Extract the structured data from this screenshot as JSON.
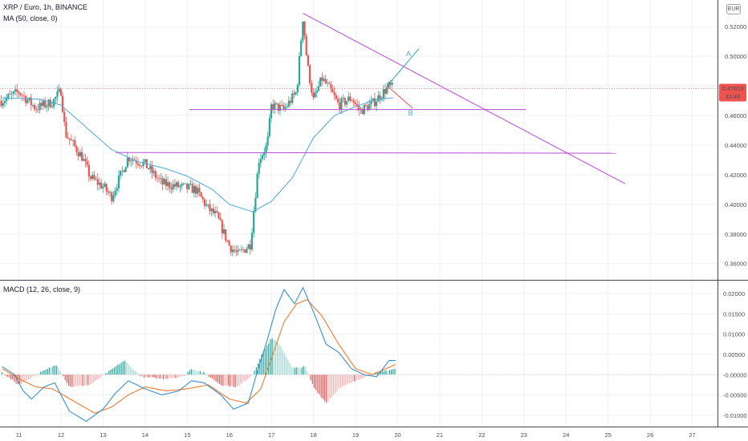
{
  "header": {
    "symbol_title": "XRP / Euro, 1h, BINANCE",
    "ma_legend": "MA (50, close, 0)",
    "macd_legend": "MACD (12, 26, close, 9)",
    "currency": "EUR"
  },
  "colors": {
    "up": "#26a69a",
    "down": "#ef5350",
    "ma_line": "#4ea8d8",
    "macd_line": "#3a8fd0",
    "signal_line": "#f07a2e",
    "trendline": "#b84ad8",
    "arrow_a": "#26a69a",
    "arrow_b": "#ef5350",
    "last_price_bg": "#ef5350"
  },
  "chart_data": [
    {
      "type": "candlestick",
      "panel": "price",
      "x_ticks": [
        "11",
        "12",
        "13",
        "14",
        "15",
        "16",
        "17",
        "18",
        "19",
        "20",
        "21",
        "22",
        "23",
        "24",
        "25",
        "26",
        "27"
      ],
      "y_ticks": [
        "0.52000",
        "0.50000",
        "0.48000",
        "0.46000",
        "0.44000",
        "0.42000",
        "0.40000",
        "0.38000",
        "0.36000"
      ],
      "ylim": [
        0.349,
        0.538
      ],
      "xlim": [
        10.55,
        27.6
      ],
      "last_price": "0.47819",
      "countdown": "33:46",
      "anchors": [
        {
          "day": 10.6,
          "price": 0.47
        },
        {
          "day": 11.0,
          "price": 0.476
        },
        {
          "day": 11.4,
          "price": 0.465
        },
        {
          "day": 11.8,
          "price": 0.469
        },
        {
          "day": 12.0,
          "price": 0.477
        },
        {
          "day": 12.1,
          "price": 0.448
        },
        {
          "day": 12.5,
          "price": 0.432
        },
        {
          "day": 12.7,
          "price": 0.418
        },
        {
          "day": 13.0,
          "price": 0.412
        },
        {
          "day": 13.2,
          "price": 0.405
        },
        {
          "day": 13.6,
          "price": 0.432
        },
        {
          "day": 14.0,
          "price": 0.427
        },
        {
          "day": 14.4,
          "price": 0.414
        },
        {
          "day": 14.8,
          "price": 0.412
        },
        {
          "day": 15.2,
          "price": 0.41
        },
        {
          "day": 15.5,
          "price": 0.397
        },
        {
          "day": 15.7,
          "price": 0.392
        },
        {
          "day": 16.0,
          "price": 0.372
        },
        {
          "day": 16.2,
          "price": 0.366
        },
        {
          "day": 16.5,
          "price": 0.373
        },
        {
          "day": 16.7,
          "price": 0.43
        },
        {
          "day": 16.9,
          "price": 0.44
        },
        {
          "day": 17.0,
          "price": 0.467
        },
        {
          "day": 17.3,
          "price": 0.464
        },
        {
          "day": 17.6,
          "price": 0.476
        },
        {
          "day": 17.75,
          "price": 0.527
        },
        {
          "day": 17.85,
          "price": 0.495
        },
        {
          "day": 18.0,
          "price": 0.47
        },
        {
          "day": 18.2,
          "price": 0.485
        },
        {
          "day": 18.4,
          "price": 0.477
        },
        {
          "day": 18.6,
          "price": 0.467
        },
        {
          "day": 18.9,
          "price": 0.472
        },
        {
          "day": 19.1,
          "price": 0.463
        },
        {
          "day": 19.4,
          "price": 0.468
        },
        {
          "day": 19.6,
          "price": 0.474
        },
        {
          "day": 19.8,
          "price": 0.48
        },
        {
          "day": 19.9,
          "price": 0.478
        }
      ],
      "ma50": [
        {
          "day": 10.6,
          "price": 0.472
        },
        {
          "day": 11.5,
          "price": 0.471
        },
        {
          "day": 12.0,
          "price": 0.467
        },
        {
          "day": 12.6,
          "price": 0.452
        },
        {
          "day": 13.2,
          "price": 0.437
        },
        {
          "day": 13.8,
          "price": 0.429
        },
        {
          "day": 14.5,
          "price": 0.424
        },
        {
          "day": 15.0,
          "price": 0.419
        },
        {
          "day": 15.6,
          "price": 0.41
        },
        {
          "day": 16.0,
          "price": 0.4
        },
        {
          "day": 16.55,
          "price": 0.395
        },
        {
          "day": 17.0,
          "price": 0.402
        },
        {
          "day": 17.5,
          "price": 0.418
        },
        {
          "day": 18.0,
          "price": 0.445
        },
        {
          "day": 18.5,
          "price": 0.46
        },
        {
          "day": 19.0,
          "price": 0.466
        },
        {
          "day": 19.5,
          "price": 0.471
        },
        {
          "day": 19.9,
          "price": 0.472
        }
      ],
      "drawings": {
        "descending_trendline": [
          {
            "day": 17.75,
            "price": 0.529
          },
          {
            "day": 25.4,
            "price": 0.414
          }
        ],
        "resistance_line": [
          {
            "day": 15.05,
            "price": 0.464
          },
          {
            "day": 23.05,
            "price": 0.464
          }
        ],
        "support_line": [
          {
            "day": 13.3,
            "price": 0.435
          },
          {
            "day": 25.2,
            "price": 0.4345
          }
        ],
        "arrow_a": [
          {
            "day": 19.75,
            "price": 0.48
          },
          {
            "day": 20.5,
            "price": 0.505
          }
        ],
        "arrow_b": [
          {
            "day": 19.75,
            "price": 0.48
          },
          {
            "day": 20.35,
            "price": 0.465
          }
        ],
        "label_a": {
          "text": "A",
          "day": 20.2,
          "price": 0.5
        },
        "label_b": {
          "text": "B",
          "day": 20.25,
          "price": 0.46
        }
      }
    },
    {
      "type": "macd",
      "panel": "indicator",
      "y_ticks": [
        "0.02000",
        "0.01500",
        "0.01000",
        "0.00500",
        "-0.00000",
        "-0.00500",
        "-0.01000"
      ],
      "ylim": [
        -0.0128,
        0.0232
      ],
      "macd": [
        {
          "day": 10.6,
          "value": 0.002
        },
        {
          "day": 10.9,
          "value": 0.0
        },
        {
          "day": 11.1,
          "value": -0.004
        },
        {
          "day": 11.3,
          "value": -0.006
        },
        {
          "day": 11.6,
          "value": -0.003
        },
        {
          "day": 11.85,
          "value": -0.002
        },
        {
          "day": 12.2,
          "value": -0.009
        },
        {
          "day": 12.6,
          "value": -0.0115
        },
        {
          "day": 13.0,
          "value": -0.0085
        },
        {
          "day": 13.3,
          "value": -0.0045
        },
        {
          "day": 13.6,
          "value": -0.0015
        },
        {
          "day": 14.0,
          "value": -0.0035
        },
        {
          "day": 14.4,
          "value": -0.005
        },
        {
          "day": 14.8,
          "value": -0.004
        },
        {
          "day": 15.1,
          "value": -0.0015
        },
        {
          "day": 15.4,
          "value": -0.002
        },
        {
          "day": 15.8,
          "value": -0.005
        },
        {
          "day": 16.1,
          "value": -0.0085
        },
        {
          "day": 16.45,
          "value": -0.007
        },
        {
          "day": 16.7,
          "value": 0.002
        },
        {
          "day": 16.9,
          "value": 0.0085
        },
        {
          "day": 17.1,
          "value": 0.016
        },
        {
          "day": 17.3,
          "value": 0.021
        },
        {
          "day": 17.55,
          "value": 0.0175
        },
        {
          "day": 17.75,
          "value": 0.0215
        },
        {
          "day": 18.0,
          "value": 0.0155
        },
        {
          "day": 18.3,
          "value": 0.0075
        },
        {
          "day": 18.6,
          "value": 0.0055
        },
        {
          "day": 18.9,
          "value": 0.0015
        },
        {
          "day": 19.2,
          "value": 0.0
        },
        {
          "day": 19.5,
          "value": -0.0005
        },
        {
          "day": 19.8,
          "value": 0.0035
        },
        {
          "day": 19.95,
          "value": 0.0035
        }
      ],
      "signal": [
        {
          "day": 10.6,
          "value": 0.0015
        },
        {
          "day": 11.0,
          "value": -0.001
        },
        {
          "day": 11.4,
          "value": -0.003
        },
        {
          "day": 11.8,
          "value": -0.0035
        },
        {
          "day": 12.3,
          "value": -0.0065
        },
        {
          "day": 12.8,
          "value": -0.0095
        },
        {
          "day": 13.2,
          "value": -0.008
        },
        {
          "day": 13.6,
          "value": -0.005
        },
        {
          "day": 14.0,
          "value": -0.003
        },
        {
          "day": 14.5,
          "value": -0.004
        },
        {
          "day": 15.0,
          "value": -0.0035
        },
        {
          "day": 15.5,
          "value": -0.0025
        },
        {
          "day": 16.0,
          "value": -0.006
        },
        {
          "day": 16.4,
          "value": -0.007
        },
        {
          "day": 16.75,
          "value": -0.0035
        },
        {
          "day": 17.0,
          "value": 0.004
        },
        {
          "day": 17.3,
          "value": 0.013
        },
        {
          "day": 17.6,
          "value": 0.0175
        },
        {
          "day": 17.85,
          "value": 0.0185
        },
        {
          "day": 18.2,
          "value": 0.0145
        },
        {
          "day": 18.6,
          "value": 0.0075
        },
        {
          "day": 19.0,
          "value": 0.0015
        },
        {
          "day": 19.4,
          "value": 0.0
        },
        {
          "day": 19.95,
          "value": 0.0025
        }
      ],
      "histogram_anchors": [
        {
          "day": 10.6,
          "value": 0.0005
        },
        {
          "day": 11.0,
          "value": -0.0025
        },
        {
          "day": 11.5,
          "value": 0.0005
        },
        {
          "day": 11.9,
          "value": 0.0025
        },
        {
          "day": 12.2,
          "value": -0.003
        },
        {
          "day": 12.7,
          "value": -0.0025
        },
        {
          "day": 13.1,
          "value": 0.0005
        },
        {
          "day": 13.5,
          "value": 0.0035
        },
        {
          "day": 13.9,
          "value": -0.0005
        },
        {
          "day": 14.4,
          "value": -0.001
        },
        {
          "day": 14.9,
          "value": -0.0005
        },
        {
          "day": 15.1,
          "value": 0.0015
        },
        {
          "day": 15.4,
          "value": 0.0005
        },
        {
          "day": 15.8,
          "value": -0.0025
        },
        {
          "day": 16.2,
          "value": -0.003
        },
        {
          "day": 16.55,
          "value": 0.0
        },
        {
          "day": 16.8,
          "value": 0.0055
        },
        {
          "day": 17.0,
          "value": 0.009
        },
        {
          "day": 17.2,
          "value": 0.0075
        },
        {
          "day": 17.5,
          "value": 0.0015
        },
        {
          "day": 17.8,
          "value": 0.002
        },
        {
          "day": 18.0,
          "value": -0.003
        },
        {
          "day": 18.3,
          "value": -0.007
        },
        {
          "day": 18.6,
          "value": -0.0035
        },
        {
          "day": 18.9,
          "value": -0.002
        },
        {
          "day": 19.1,
          "value": -0.001
        },
        {
          "day": 19.5,
          "value": 0.0005
        },
        {
          "day": 19.95,
          "value": 0.0015
        }
      ]
    }
  ]
}
